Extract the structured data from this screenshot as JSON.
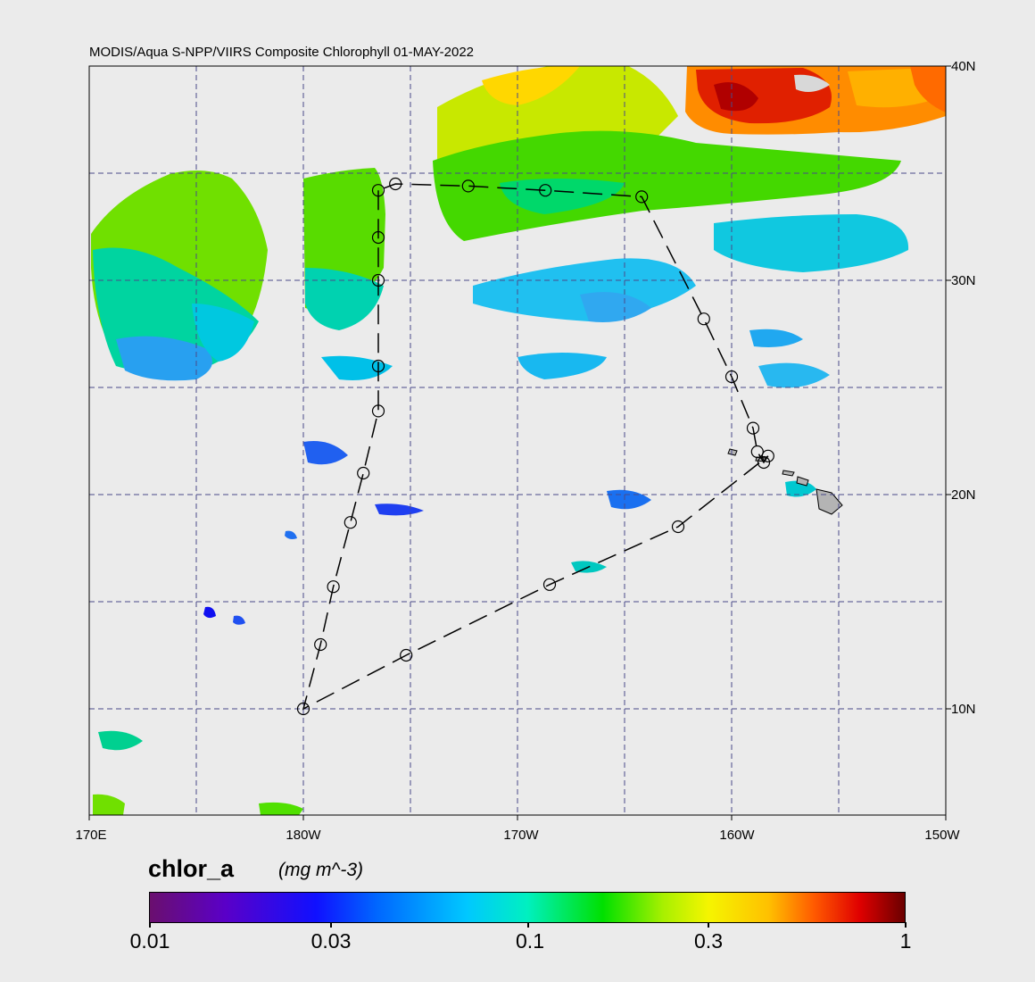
{
  "title": "MODIS/Aqua S-NPP/VIIRS Composite Chlorophyll 01-MAY-2022",
  "lat_labels": [
    "40N",
    "30N",
    "20N",
    "10N"
  ],
  "lon_labels": [
    "170E",
    "180W",
    "170W",
    "160W",
    "150W"
  ],
  "colorbar": {
    "variable": "chlor_a",
    "units": "(mg m^-3)",
    "ticks": [
      "0.01",
      "0.03",
      "0.1",
      "0.3",
      "1"
    ],
    "colors": [
      "#6a0f6e",
      "#1010ff",
      "#00c8ff",
      "#00e000",
      "#f5f500",
      "#ff5a00",
      "#6a0000"
    ]
  },
  "colors": {
    "background": "#ebebeb",
    "gridline": "#4a4a8a",
    "land": "#b4b4b4"
  },
  "legend": "bottom colorbar, log scale",
  "chart_data": {
    "type": "map",
    "lon_range": [
      "170E",
      "150W"
    ],
    "lat_range": [
      "5N",
      "40N"
    ],
    "grid": true,
    "color_scale": "log",
    "value_range": [
      0.01,
      1
    ],
    "cruise_track_stations": [
      {
        "lon": 183.5,
        "lat": 34.2
      },
      {
        "lon": 183.5,
        "lat": 32.0
      },
      {
        "lon": 183.5,
        "lat": 30.0
      },
      {
        "lon": 183.5,
        "lat": 26.0
      },
      {
        "lon": 183.5,
        "lat": 23.9
      },
      {
        "lon": 182.8,
        "lat": 21.0
      },
      {
        "lon": 182.2,
        "lat": 18.7
      },
      {
        "lon": 181.4,
        "lat": 15.7
      },
      {
        "lon": 180.8,
        "lat": 13.0
      },
      {
        "lon": 180.0,
        "lat": 10.0
      },
      {
        "lon": 184.8,
        "lat": 12.5
      },
      {
        "lon": 191.5,
        "lat": 15.8
      },
      {
        "lon": 197.5,
        "lat": 18.5
      },
      {
        "lon": 201.7,
        "lat": 21.8
      },
      {
        "lon": 201.5,
        "lat": 21.5
      },
      {
        "lon": 201.2,
        "lat": 22.0
      },
      {
        "lon": 201.0,
        "lat": 23.1
      },
      {
        "lon": 200.0,
        "lat": 25.5
      },
      {
        "lon": 198.7,
        "lat": 28.2
      },
      {
        "lon": 195.8,
        "lat": 33.9
      },
      {
        "lon": 191.3,
        "lat": 34.2
      },
      {
        "lon": 187.7,
        "lat": 34.4
      },
      {
        "lon": 184.3,
        "lat": 34.5
      }
    ]
  }
}
